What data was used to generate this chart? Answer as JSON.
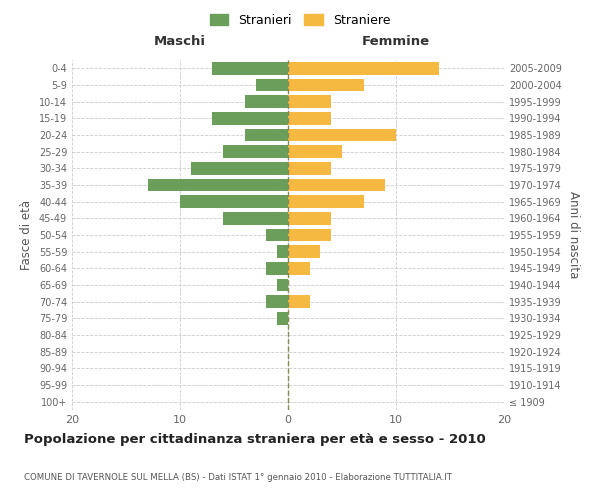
{
  "age_groups": [
    "100+",
    "95-99",
    "90-94",
    "85-89",
    "80-84",
    "75-79",
    "70-74",
    "65-69",
    "60-64",
    "55-59",
    "50-54",
    "45-49",
    "40-44",
    "35-39",
    "30-34",
    "25-29",
    "20-24",
    "15-19",
    "10-14",
    "5-9",
    "0-4"
  ],
  "birth_years": [
    "≤ 1909",
    "1910-1914",
    "1915-1919",
    "1920-1924",
    "1925-1929",
    "1930-1934",
    "1935-1939",
    "1940-1944",
    "1945-1949",
    "1950-1954",
    "1955-1959",
    "1960-1964",
    "1965-1969",
    "1970-1974",
    "1975-1979",
    "1980-1984",
    "1985-1989",
    "1990-1994",
    "1995-1999",
    "2000-2004",
    "2005-2009"
  ],
  "maschi": [
    0,
    0,
    0,
    0,
    0,
    1,
    2,
    1,
    2,
    1,
    2,
    6,
    10,
    13,
    9,
    6,
    4,
    7,
    4,
    3,
    7
  ],
  "femmine": [
    0,
    0,
    0,
    0,
    0,
    0,
    2,
    0,
    2,
    3,
    4,
    4,
    7,
    9,
    4,
    5,
    10,
    4,
    4,
    7,
    14
  ],
  "color_maschi": "#6a9e5a",
  "color_femmine": "#f5b942",
  "title": "Popolazione per cittadinanza straniera per età e sesso - 2010",
  "subtitle": "COMUNE DI TAVERNOLE SUL MELLA (BS) - Dati ISTAT 1° gennaio 2010 - Elaborazione TUTTITALIA.IT",
  "xlabel_left": "Maschi",
  "xlabel_right": "Femmine",
  "ylabel_left": "Fasce di età",
  "ylabel_right": "Anni di nascita",
  "legend_maschi": "Stranieri",
  "legend_femmine": "Straniere",
  "xlim": 20,
  "background_color": "#ffffff",
  "grid_color": "#cccccc"
}
